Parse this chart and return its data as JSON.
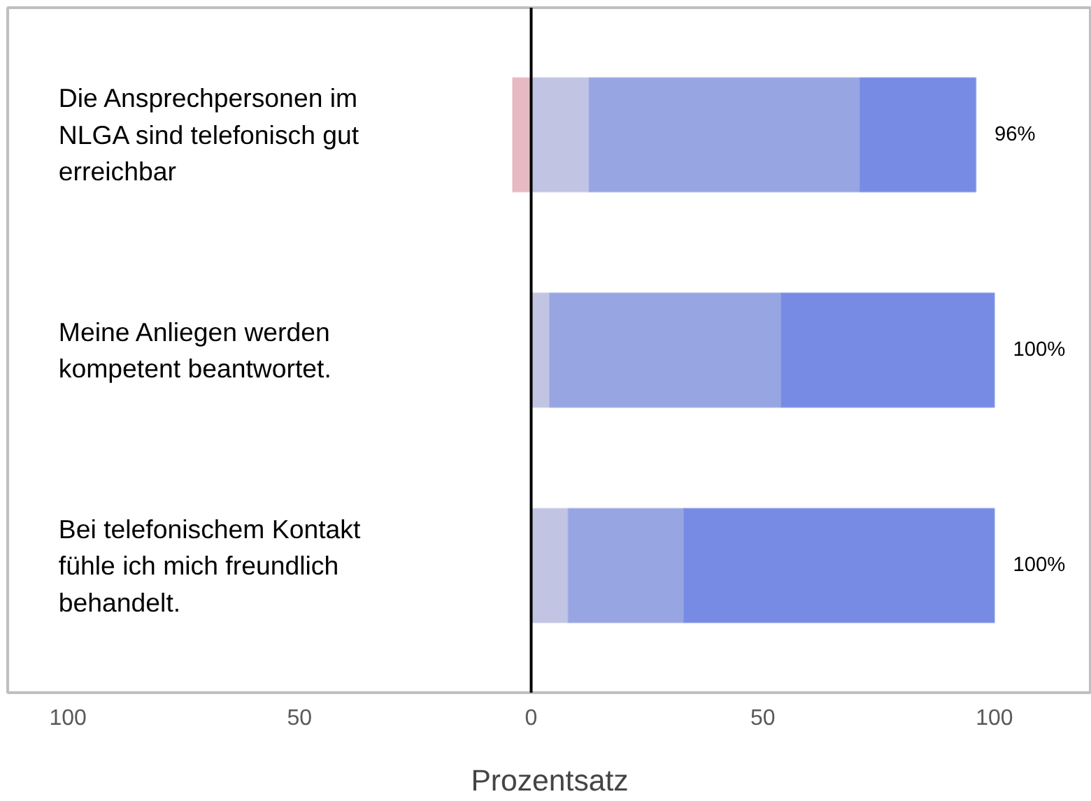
{
  "chart_data": {
    "type": "bar",
    "orientation": "horizontal",
    "stacked": true,
    "categories": [
      "Die Ansprechpersonen im NLGA sind telefonisch gut erreichbar",
      "Meine Anliegen werden kompetent beantwortet.",
      "Bei telefonischem Kontakt fühle ich mich freundlich behandelt."
    ],
    "series": [
      {
        "color": "#e6b9c3",
        "values": [
          -4,
          0,
          0
        ]
      },
      {
        "color": "#c1c5e3",
        "values": [
          12.5,
          4,
          8
        ]
      },
      {
        "color": "#97a6e2",
        "values": [
          58.5,
          50,
          25
        ]
      },
      {
        "color": "#778be5",
        "values": [
          25,
          46,
          67
        ]
      }
    ],
    "annotations": [
      "96%",
      "100%",
      "100%"
    ],
    "xlabel": "Prozentsatz",
    "xlim": [
      -113,
      121
    ],
    "xticks": [
      {
        "value": -100,
        "label": "100"
      },
      {
        "value": -50,
        "label": "50"
      },
      0,
      50,
      100
    ],
    "ref_lines": [
      {
        "axis": "x",
        "value": 0,
        "color": "#000000"
      }
    ],
    "grid": false
  }
}
